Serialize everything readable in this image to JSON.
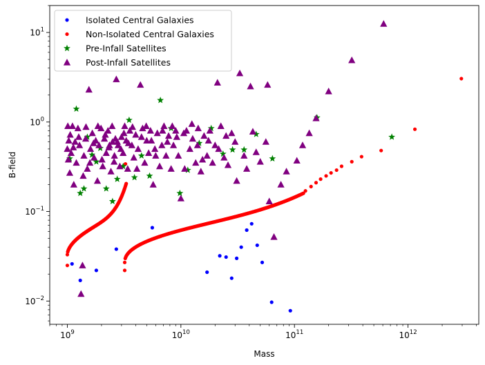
{
  "chart_data": {
    "type": "scatter",
    "xlabel": "Mass",
    "ylabel": "B-field",
    "xscale": "log",
    "yscale": "log",
    "xlim": [
      700000000.0,
      4200000000000.0
    ],
    "ylim": [
      0.0055,
      20
    ],
    "grid": false,
    "legend_position": "top-left",
    "x_ticks": [
      {
        "value": 1000000000.0,
        "base": "10",
        "exp": "9"
      },
      {
        "value": 10000000000.0,
        "base": "10",
        "exp": "10"
      },
      {
        "value": 100000000000.0,
        "base": "10",
        "exp": "11"
      },
      {
        "value": 1000000000000.0,
        "base": "10",
        "exp": "12"
      }
    ],
    "y_ticks": [
      {
        "value": 0.01,
        "base": "10",
        "exp": "−2"
      },
      {
        "value": 0.1,
        "base": "10",
        "exp": "−1"
      },
      {
        "value": 1,
        "base": "10",
        "exp": "0"
      },
      {
        "value": 10,
        "base": "10",
        "exp": "1"
      }
    ],
    "series": [
      {
        "name": "Isolated Central Galaxies",
        "marker": "circle",
        "color": "#0000ff",
        "points": [
          [
            1100000000.0,
            0.026
          ],
          [
            1300000000.0,
            0.017
          ],
          [
            1800000000.0,
            0.022
          ],
          [
            2700000000.0,
            0.038
          ],
          [
            5600000000.0,
            0.066
          ],
          [
            17000000000.0,
            0.021
          ],
          [
            22000000000.0,
            0.032
          ],
          [
            25000000000.0,
            0.031
          ],
          [
            28000000000.0,
            0.018
          ],
          [
            31000000000.0,
            0.03
          ],
          [
            34000000000.0,
            0.04
          ],
          [
            38000000000.0,
            0.062
          ],
          [
            42000000000.0,
            0.073
          ],
          [
            47000000000.0,
            0.042
          ],
          [
            52000000000.0,
            0.027
          ],
          [
            63000000000.0,
            0.0097
          ],
          [
            92000000000.0,
            0.0078
          ]
        ]
      },
      {
        "name": "Non-Isolated Central Galaxies",
        "marker": "circle",
        "color": "#ff0000",
        "curves": [
          {
            "x_start": 1000000000.0,
            "x_end": 3300000000.0,
            "y_start": 0.033,
            "y_end": 0.205,
            "n": 150,
            "shape": "lower"
          },
          {
            "x_start": 3200000000.0,
            "x_end": 120000000000.0,
            "y_start": 0.027,
            "y_end": 0.16,
            "n": 330,
            "shape": "upper"
          }
        ],
        "points": [
          [
            1000000000.0,
            0.025
          ],
          [
            3200000000.0,
            0.022
          ],
          [
            3250000000.0,
            0.34
          ],
          [
            125000000000.0,
            0.17
          ],
          [
            140000000000.0,
            0.19
          ],
          [
            155000000000.0,
            0.21
          ],
          [
            170000000000.0,
            0.23
          ],
          [
            190000000000.0,
            0.25
          ],
          [
            210000000000.0,
            0.27
          ],
          [
            235000000000.0,
            0.29
          ],
          [
            260000000000.0,
            0.32
          ],
          [
            320000000000.0,
            0.36
          ],
          [
            390000000000.0,
            0.41
          ],
          [
            580000000000.0,
            0.48
          ],
          [
            1150000000000.0,
            0.83
          ],
          [
            2950000000000.0,
            3.05
          ]
        ]
      },
      {
        "name": "Pre-Infall Satellites",
        "marker": "star",
        "color": "#008000",
        "points": [
          [
            1050000000.0,
            0.39
          ],
          [
            1200000000.0,
            1.4
          ],
          [
            1300000000.0,
            0.16
          ],
          [
            1400000000.0,
            0.18
          ],
          [
            1500000000.0,
            0.68
          ],
          [
            1650000000.0,
            0.43
          ],
          [
            1800000000.0,
            0.36
          ],
          [
            1950000000.0,
            0.51
          ],
          [
            2200000000.0,
            0.18
          ],
          [
            2500000000.0,
            0.13
          ],
          [
            2750000000.0,
            0.23
          ],
          [
            3100000000.0,
            0.32
          ],
          [
            3500000000.0,
            1.05
          ],
          [
            3900000000.0,
            0.24
          ],
          [
            4500000000.0,
            0.42
          ],
          [
            5300000000.0,
            0.25
          ],
          [
            6600000000.0,
            1.75
          ],
          [
            8200000000.0,
            0.85
          ],
          [
            9800000000.0,
            0.16
          ],
          [
            11500000000.0,
            0.29
          ],
          [
            14500000000.0,
            0.58
          ],
          [
            18500000000.0,
            0.85
          ],
          [
            23500000000.0,
            0.44
          ],
          [
            28500000000.0,
            0.49
          ],
          [
            36000000000.0,
            0.49
          ],
          [
            46000000000.0,
            0.73
          ],
          [
            64000000000.0,
            0.39
          ],
          [
            158000000000.0,
            1.12
          ],
          [
            720000000000.0,
            0.68
          ]
        ]
      },
      {
        "name": "Post-Infall Satellites",
        "marker": "triangle",
        "color": "#800080",
        "points": [
          [
            610000000000.0,
            12.5
          ],
          [
            320000000000.0,
            4.9
          ],
          [
            200000000000.0,
            2.2
          ],
          [
            155000000000.0,
            1.1
          ],
          [
            135000000000.0,
            0.75
          ],
          [
            118000000000.0,
            0.55
          ],
          [
            105000000000.0,
            0.37
          ],
          [
            85000000000.0,
            0.28
          ],
          [
            76000000000.0,
            0.2
          ],
          [
            66000000000.0,
            0.052
          ],
          [
            60000000000.0,
            0.13
          ],
          [
            58000000000.0,
            2.6
          ],
          [
            56000000000.0,
            0.6
          ],
          [
            50000000000.0,
            0.36
          ],
          [
            46000000000.0,
            0.46
          ],
          [
            43000000000.0,
            0.78
          ],
          [
            41000000000.0,
            2.5
          ],
          [
            38000000000.0,
            0.3
          ],
          [
            33000000000.0,
            3.5
          ],
          [
            31000000000.0,
            0.22
          ],
          [
            28000000000.0,
            0.75
          ],
          [
            26000000000.0,
            0.33
          ],
          [
            24000000000.0,
            0.4
          ],
          [
            22500000000.0,
            0.9
          ],
          [
            21000000000.0,
            2.75
          ],
          [
            20000000000.0,
            0.55
          ],
          [
            19000000000.0,
            0.35
          ],
          [
            18000000000.0,
            0.8
          ],
          [
            17000000000.0,
            0.42
          ],
          [
            16000000000.0,
            0.7
          ],
          [
            15000000000.0,
            0.28
          ],
          [
            14200000000.0,
            0.85
          ],
          [
            13500000000.0,
            0.35
          ],
          [
            12700000000.0,
            0.65
          ],
          [
            12000000000.0,
            0.5
          ],
          [
            11200000000.0,
            0.8
          ],
          [
            10600000000.0,
            0.75
          ],
          [
            10000000000.0,
            0.14
          ],
          [
            9500000000.0,
            0.42
          ],
          [
            9000000000.0,
            0.8
          ],
          [
            8600000000.0,
            0.55
          ],
          [
            8200000000.0,
            0.3
          ],
          [
            7800000000.0,
            0.7
          ],
          [
            7400000000.0,
            0.42
          ],
          [
            7100000000.0,
            0.9
          ],
          [
            6800000000.0,
            0.55
          ],
          [
            6500000000.0,
            0.32
          ],
          [
            6200000000.0,
            0.75
          ],
          [
            5900000000.0,
            0.5
          ],
          [
            5700000000.0,
            0.2
          ],
          [
            5400000000.0,
            0.8
          ],
          [
            5200000000.0,
            0.45
          ],
          [
            5000000000.0,
            0.62
          ],
          [
            4800000000.0,
            0.35
          ],
          [
            4600000000.0,
            0.85
          ],
          [
            4400000000.0,
            2.6
          ],
          [
            4200000000.0,
            0.5
          ],
          [
            4000000000.0,
            0.72
          ],
          [
            3850000000.0,
            0.4
          ],
          [
            3700000000.0,
            0.55
          ],
          [
            3550000000.0,
            0.8
          ],
          [
            3400000000.0,
            0.3
          ],
          [
            3300000000.0,
            0.62
          ],
          [
            3200000000.0,
            0.9
          ],
          [
            3100000000.0,
            0.45
          ],
          [
            3000000000.0,
            0.68
          ],
          [
            2900000000.0,
            0.32
          ],
          [
            2800000000.0,
            0.55
          ],
          [
            2700000000.0,
            3.0
          ],
          [
            2650000000.0,
            0.65
          ],
          [
            2600000000.0,
            0.42
          ],
          [
            2500000000.0,
            0.6
          ],
          [
            2420000000.0,
            0.28
          ],
          [
            2350000000.0,
            0.55
          ],
          [
            2280000000.0,
            0.8
          ],
          [
            2200000000.0,
            0.45
          ],
          [
            2120000000.0,
            0.65
          ],
          [
            2050000000.0,
            0.32
          ],
          [
            1980000000.0,
            0.85
          ],
          [
            1900000000.0,
            0.55
          ],
          [
            1840000000.0,
            0.22
          ],
          [
            1780000000.0,
            0.62
          ],
          [
            1720000000.0,
            0.4
          ],
          [
            1660000000.0,
            0.75
          ],
          [
            1600000000.0,
            0.5
          ],
          [
            1550000000.0,
            2.3
          ],
          [
            1500000000.0,
            0.3
          ],
          [
            1450000000.0,
            0.65
          ],
          [
            1400000000.0,
            0.42
          ],
          [
            1360000000.0,
            0.025
          ],
          [
            1320000000.0,
            0.012
          ],
          [
            1280000000.0,
            0.55
          ],
          [
            1240000000.0,
            0.85
          ],
          [
            1200000000.0,
            0.35
          ],
          [
            1170000000.0,
            0.6
          ],
          [
            1140000000.0,
            0.2
          ],
          [
            1110000000.0,
            0.9
          ],
          [
            1080000000.0,
            0.45
          ],
          [
            1050000000.0,
            0.27
          ],
          [
            1030000000.0,
            0.62
          ],
          [
            1010000000.0,
            0.9
          ],
          [
            1000000000.0,
            0.5
          ],
          [
            1020000000.0,
            0.38
          ],
          [
            1060000000.0,
            0.72
          ],
          [
            1130000000.0,
            0.52
          ],
          [
            1260000000.0,
            0.68
          ],
          [
            1380000000.0,
            0.25
          ],
          [
            1460000000.0,
            0.88
          ],
          [
            1580000000.0,
            0.35
          ],
          [
            1700000000.0,
            0.58
          ],
          [
            1860000000.0,
            0.9
          ],
          [
            2020000000.0,
            0.38
          ],
          [
            2160000000.0,
            0.72
          ],
          [
            2320000000.0,
            0.52
          ],
          [
            2480000000.0,
            0.9
          ],
          [
            2580000000.0,
            0.36
          ],
          [
            2760000000.0,
            0.6
          ],
          [
            2960000000.0,
            0.5
          ],
          [
            3150000000.0,
            0.75
          ],
          [
            3450000000.0,
            0.58
          ],
          [
            3750000000.0,
            0.88
          ],
          [
            4100000000.0,
            0.3
          ],
          [
            4500000000.0,
            0.68
          ],
          [
            4950000000.0,
            0.9
          ],
          [
            5500000000.0,
            0.62
          ],
          [
            6000000000.0,
            0.42
          ],
          [
            6900000000.0,
            0.8
          ],
          [
            7600000000.0,
            0.6
          ],
          [
            8400000000.0,
            0.9
          ],
          [
            9200000000.0,
            0.68
          ],
          [
            10800000000.0,
            0.3
          ],
          [
            12500000000.0,
            0.95
          ],
          [
            14000000000.0,
            0.55
          ],
          [
            15500000000.0,
            0.38
          ],
          [
            17500000000.0,
            0.62
          ],
          [
            21500000000.0,
            0.5
          ],
          [
            25000000000.0,
            0.7
          ],
          [
            30000000000.0,
            0.6
          ],
          [
            36000000000.0,
            0.42
          ]
        ]
      }
    ]
  }
}
